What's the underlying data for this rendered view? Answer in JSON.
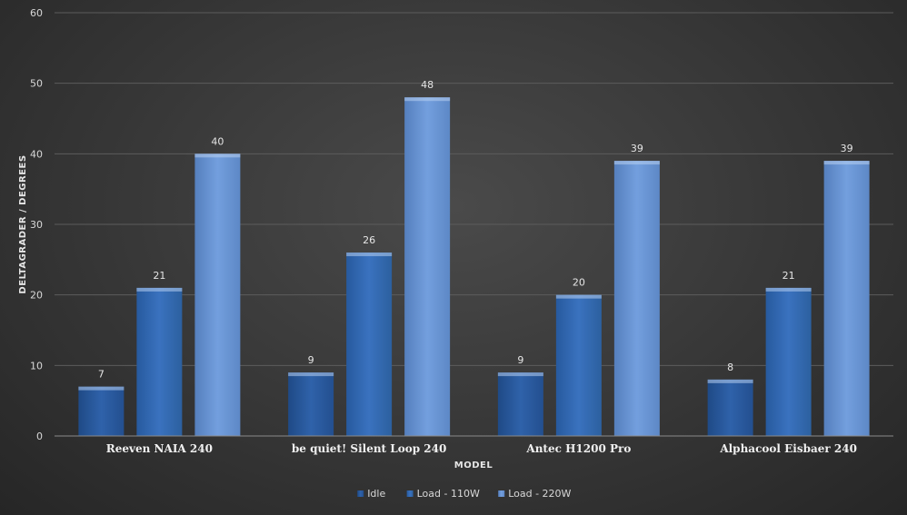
{
  "chart_data": {
    "type": "bar",
    "categories": [
      "Reeven NAIA 240",
      "be quiet! Silent Loop 240",
      "Antec H1200 Pro",
      "Alphacool Eisbaer 240"
    ],
    "series": [
      {
        "name": "Idle",
        "values": [
          7,
          9,
          9,
          8
        ],
        "color": "#2e5fa3"
      },
      {
        "name": "Load - 110W",
        "values": [
          21,
          26,
          20,
          21
        ],
        "color": "#3a6fb8"
      },
      {
        "name": "Load - 220W",
        "values": [
          40,
          48,
          39,
          39
        ],
        "color": "#6a98d8"
      }
    ],
    "xlabel": "MODEL",
    "ylabel": "DELTAGRADER / DEGREES",
    "ylim": [
      0,
      60
    ],
    "yticks": [
      0,
      10,
      20,
      30,
      40,
      50,
      60
    ],
    "grid": true,
    "legend": "bottom"
  }
}
